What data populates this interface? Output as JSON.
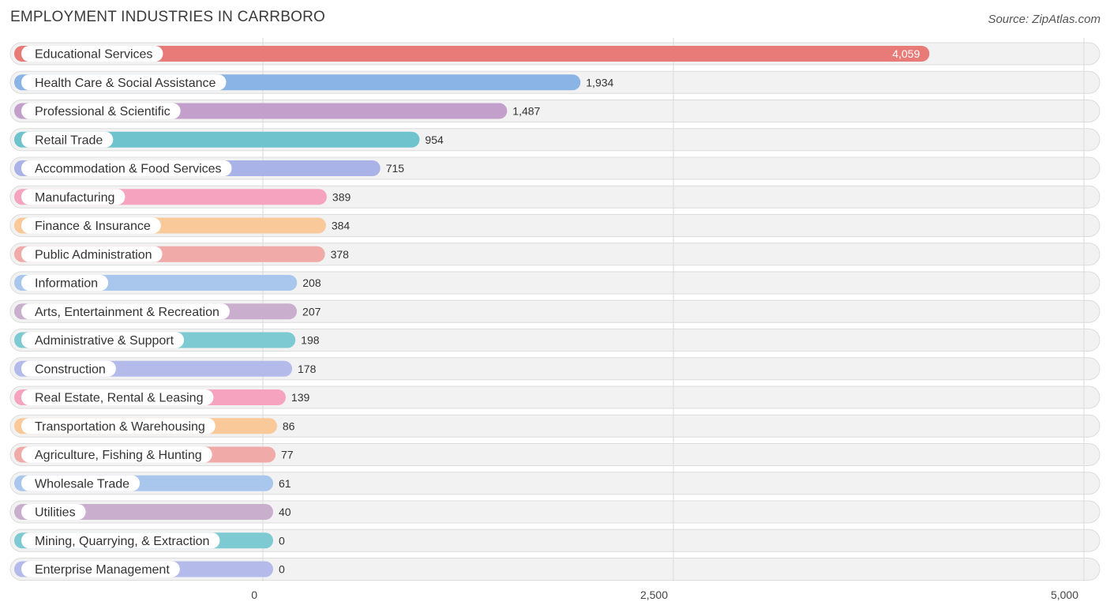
{
  "chart_data": {
    "type": "bar",
    "orientation": "horizontal",
    "title": "EMPLOYMENT INDUSTRIES IN CARRBORO",
    "source": "Source: ZipAtlas.com",
    "xlim": [
      0,
      5000
    ],
    "ticks": [
      {
        "value": 0,
        "label": "0"
      },
      {
        "value": 2500,
        "label": "2,500"
      },
      {
        "value": 5000,
        "label": "5,000"
      }
    ],
    "categories": [
      "Educational Services",
      "Health Care & Social Assistance",
      "Professional & Scientific",
      "Retail Trade",
      "Accommodation & Food Services",
      "Manufacturing",
      "Finance & Insurance",
      "Public Administration",
      "Information",
      "Arts, Entertainment & Recreation",
      "Administrative & Support",
      "Construction",
      "Real Estate, Rental & Leasing",
      "Transportation & Warehousing",
      "Agriculture, Fishing & Hunting",
      "Wholesale Trade",
      "Utilities",
      "Mining, Quarrying, & Extraction",
      "Enterprise Management"
    ],
    "values": [
      4059,
      1934,
      1487,
      954,
      715,
      389,
      384,
      378,
      208,
      207,
      198,
      178,
      139,
      86,
      77,
      61,
      40,
      0,
      0
    ],
    "value_labels": [
      "4,059",
      "1,934",
      "1,487",
      "954",
      "715",
      "389",
      "384",
      "378",
      "208",
      "207",
      "198",
      "178",
      "139",
      "86",
      "77",
      "61",
      "40",
      "0",
      "0"
    ],
    "colors": [
      "#e87b78",
      "#8ab4e6",
      "#c2a0cb",
      "#6ec3cc",
      "#aab3e8",
      "#f5a3bf",
      "#fac99a",
      "#f0aaa8",
      "#a9c6ec",
      "#c9aece",
      "#7ecad2",
      "#b4bbeb",
      "#f5a3bf",
      "#fac99a",
      "#f0aaa8",
      "#a9c6ec",
      "#c9aece",
      "#7ecad2",
      "#b4bbeb"
    ]
  }
}
